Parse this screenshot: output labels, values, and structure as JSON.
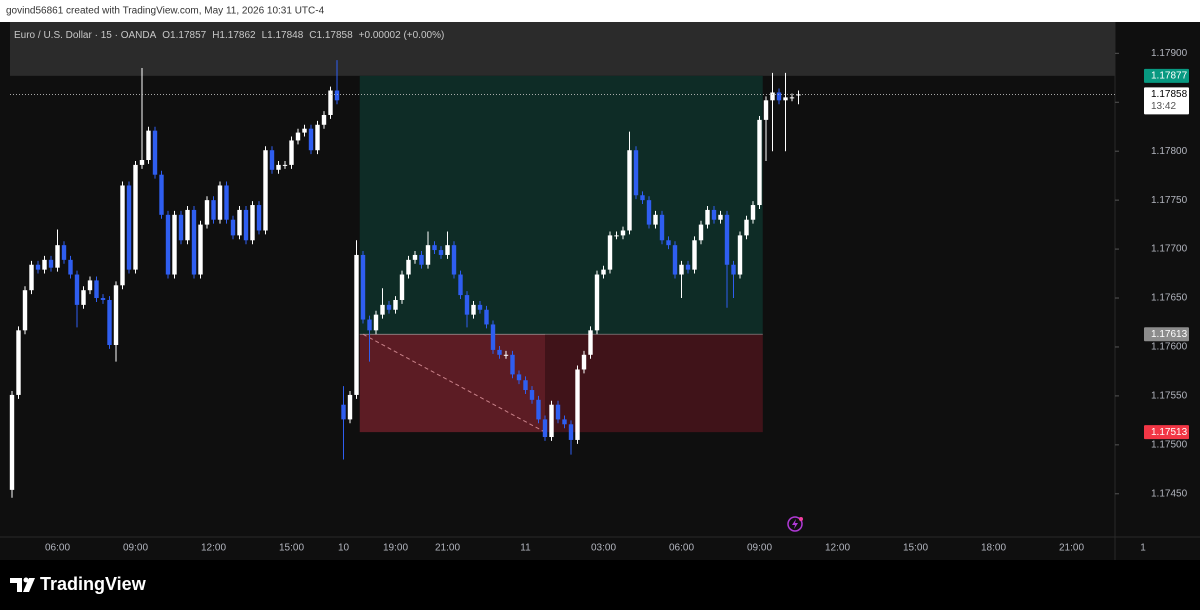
{
  "chart_data": {
    "type": "candlestick",
    "attribution": "govind56861 created with TradingView.com, May 11, 2026 10:31 UTC-4",
    "symbol": "Euro / U.S. Dollar · 15 · OANDA",
    "ohlc_text": [
      "O1.17857",
      "H1.17862",
      "L1.17848",
      "C1.17858",
      "+0.00002 (+0.00%)"
    ],
    "brand": "TradingView",
    "countdown": "13:42",
    "up_color": "#ffffff",
    "down_color": "#2f5ef0",
    "profit_color": "#0e2c26",
    "loss_color": "#5c1c24",
    "ylim": [
      1.17413,
      1.17932
    ],
    "yticks": [
      {
        "value": 1.1745,
        "label": "1.17450"
      },
      {
        "value": 1.175,
        "label": "1.17500"
      },
      {
        "value": 1.1755,
        "label": "1.17550"
      },
      {
        "value": 1.176,
        "label": "1.17600"
      },
      {
        "value": 1.1765,
        "label": "1.17650"
      },
      {
        "value": 1.177,
        "label": "1.17700"
      },
      {
        "value": 1.1775,
        "label": "1.17750"
      },
      {
        "value": 1.178,
        "label": "1.17800"
      },
      {
        "value": 1.1785,
        "label": "1.17850"
      },
      {
        "value": 1.179,
        "label": "1.17900"
      }
    ],
    "position": {
      "entry": 1.17613,
      "target": 1.17877,
      "stop": 1.17513,
      "start": 54,
      "end": 115
    },
    "categories": [
      null,
      null,
      null,
      null,
      null,
      null,
      null,
      "06:00",
      null,
      null,
      null,
      null,
      null,
      null,
      null,
      null,
      null,
      null,
      null,
      "09:00",
      null,
      null,
      null,
      null,
      null,
      null,
      null,
      null,
      null,
      null,
      null,
      "12:00",
      null,
      null,
      null,
      null,
      null,
      null,
      null,
      null,
      null,
      null,
      null,
      "15:00",
      null,
      null,
      null,
      null,
      null,
      null,
      null,
      "10",
      null,
      null,
      null,
      null,
      null,
      null,
      null,
      "19:00",
      null,
      null,
      null,
      null,
      null,
      null,
      null,
      "21:00",
      null,
      null,
      null,
      null,
      null,
      null,
      null,
      null,
      null,
      null,
      null,
      "11",
      null,
      null,
      null,
      null,
      null,
      null,
      null,
      null,
      null,
      null,
      null,
      "03:00",
      null,
      null,
      null,
      null,
      null,
      null,
      null,
      null,
      null,
      null,
      null,
      "06:00",
      null,
      null,
      null,
      null,
      null,
      null,
      null,
      null,
      null,
      null,
      null,
      "09:00",
      null,
      null,
      null,
      null,
      null,
      null,
      null,
      null,
      null,
      null,
      null,
      "12:00",
      null,
      null,
      null,
      null,
      null,
      null,
      null,
      null,
      null,
      null,
      null,
      "15:00",
      null,
      null,
      null,
      null,
      null,
      null,
      null,
      null,
      null,
      null,
      null,
      "18:00",
      null,
      null,
      null,
      null,
      null,
      null,
      null,
      null,
      null,
      null,
      null,
      "21:00",
      null,
      null,
      null,
      null,
      null,
      null,
      null,
      null,
      null,
      null,
      "1",
      null
    ],
    "open": [
      1.17454,
      1.17551,
      1.17617,
      1.17658,
      1.17684,
      1.17679,
      1.17689,
      1.17681,
      1.17704,
      1.17689,
      1.17674,
      1.17643,
      1.17658,
      1.17668,
      1.1765,
      1.17648,
      1.17602,
      1.17663,
      1.17765,
      1.17679,
      1.17786,
      1.17791,
      1.17821,
      1.17776,
      1.17735,
      1.17674,
      1.17735,
      1.17709,
      1.1774,
      1.17674,
      1.17725,
      1.1775,
      1.1773,
      1.17765,
      1.1773,
      1.17714,
      1.1774,
      1.17709,
      1.17745,
      1.17719,
      1.17801,
      1.17781,
      1.17786,
      1.17786,
      1.17811,
      1.17819,
      1.17823,
      1.17801,
      1.17827,
      1.17837,
      1.17862,
      1.17541,
      1.17526,
      1.17551,
      1.17694,
      1.17628,
      1.17617,
      1.17633,
      1.17643,
      1.17638,
      1.17648,
      1.17674,
      1.17689,
      1.17694,
      1.17684,
      1.17704,
      1.17699,
      1.17694,
      1.17704,
      1.17674,
      1.17653,
      1.17633,
      1.17643,
      1.17638,
      1.17623,
      1.17597,
      1.17592,
      1.17592,
      1.17572,
      1.17566,
      1.17556,
      1.17546,
      1.17526,
      1.17508,
      1.17541,
      1.17526,
      1.17521,
      1.17505,
      1.17577,
      1.17592,
      1.17617,
      1.17674,
      1.17679,
      1.17714,
      1.17714,
      1.17719,
      1.17801,
      1.17755,
      1.1775,
      1.17725,
      1.17735,
      1.17709,
      1.17704,
      1.17674,
      1.17684,
      1.17679,
      1.17709,
      1.17725,
      1.1774,
      1.1773,
      1.17735,
      1.17684,
      1.17674,
      1.17714,
      1.1773,
      1.17745,
      1.17832,
      1.17852,
      1.1786,
      1.17852,
      1.17855,
      1.17857,
      null,
      null,
      null,
      null,
      null,
      null,
      null,
      null,
      null,
      null,
      null,
      null,
      null,
      null,
      null,
      null,
      null,
      null,
      null,
      null,
      null,
      null,
      null,
      null,
      null,
      null,
      null,
      null,
      null,
      null,
      null,
      null,
      null,
      null,
      null,
      null,
      null,
      null,
      null,
      null,
      null,
      null,
      null,
      null,
      null,
      null,
      null,
      null,
      null,
      null,
      null,
      null,
      null,
      null
    ],
    "high": [
      1.17555,
      1.17621,
      1.17662,
      1.17688,
      1.17688,
      1.17693,
      1.17693,
      1.1772,
      1.17708,
      1.17693,
      1.17678,
      1.17662,
      1.17672,
      1.17672,
      1.17654,
      1.17652,
      1.17667,
      1.17769,
      1.17769,
      1.1779,
      1.17885,
      1.17825,
      1.17825,
      1.1778,
      1.17739,
      1.17739,
      1.17739,
      1.17744,
      1.17744,
      1.17729,
      1.17754,
      1.17754,
      1.17769,
      1.17769,
      1.17734,
      1.17744,
      1.17744,
      1.17749,
      1.17749,
      1.17805,
      1.17805,
      1.1779,
      1.1779,
      1.17815,
      1.17823,
      1.17827,
      1.17827,
      1.17831,
      1.17841,
      1.17866,
      1.17893,
      1.1756,
      1.17555,
      1.17709,
      1.17698,
      1.17632,
      1.17637,
      1.1766,
      1.17647,
      1.17652,
      1.17678,
      1.17693,
      1.17698,
      1.17698,
      1.17718,
      1.17708,
      1.17703,
      1.17718,
      1.17708,
      1.17678,
      1.17657,
      1.17647,
      1.17647,
      1.17642,
      1.17627,
      1.17601,
      1.17596,
      1.17596,
      1.17576,
      1.1757,
      1.1756,
      1.1755,
      1.1753,
      1.17545,
      1.17545,
      1.1753,
      1.17525,
      1.17581,
      1.17596,
      1.17621,
      1.17678,
      1.17683,
      1.17718,
      1.17718,
      1.17723,
      1.1782,
      1.17805,
      1.17759,
      1.17754,
      1.17739,
      1.17739,
      1.17713,
      1.17708,
      1.17688,
      1.17688,
      1.17713,
      1.17729,
      1.17744,
      1.17744,
      1.17739,
      1.17739,
      1.17688,
      1.17718,
      1.17734,
      1.17749,
      1.17836,
      1.17856,
      1.1788,
      1.17864,
      1.1788,
      1.17859,
      1.17862,
      null,
      null,
      null,
      null,
      null,
      null,
      null,
      null,
      null,
      null,
      null,
      null,
      null,
      null,
      null,
      null,
      null,
      null,
      null,
      null,
      null,
      null,
      null,
      null,
      null,
      null,
      null,
      null,
      null,
      null,
      null,
      null,
      null,
      null,
      null,
      null,
      null,
      null,
      null,
      null,
      null,
      null,
      null,
      null,
      null,
      null,
      null,
      null,
      null,
      null,
      null,
      null,
      null,
      null
    ],
    "low": [
      1.17446,
      1.17547,
      1.17613,
      1.17654,
      1.17675,
      1.17675,
      1.17677,
      1.17677,
      1.17685,
      1.1767,
      1.1762,
      1.17639,
      1.17654,
      1.17646,
      1.17644,
      1.17598,
      1.17585,
      1.17659,
      1.17675,
      1.17675,
      1.17782,
      1.17787,
      1.17772,
      1.17731,
      1.1767,
      1.1767,
      1.17705,
      1.17705,
      1.1767,
      1.1767,
      1.17721,
      1.17726,
      1.17726,
      1.17726,
      1.1771,
      1.1771,
      1.17705,
      1.17705,
      1.17715,
      1.17715,
      1.17777,
      1.17777,
      1.17782,
      1.17782,
      1.17807,
      1.17815,
      1.17797,
      1.17797,
      1.17823,
      1.17833,
      1.17848,
      1.17485,
      1.17522,
      1.17547,
      1.17624,
      1.17585,
      1.17613,
      1.17629,
      1.17634,
      1.17634,
      1.17644,
      1.1767,
      1.17685,
      1.1768,
      1.1768,
      1.17695,
      1.1769,
      1.1769,
      1.1767,
      1.17649,
      1.1762,
      1.17629,
      1.17634,
      1.17619,
      1.17593,
      1.17588,
      1.17588,
      1.17568,
      1.17562,
      1.17552,
      1.17542,
      1.17522,
      1.17504,
      1.17504,
      1.17522,
      1.17517,
      1.1749,
      1.17501,
      1.17573,
      1.17588,
      1.17613,
      1.1767,
      1.17675,
      1.1771,
      1.1771,
      1.17715,
      1.17751,
      1.17746,
      1.17721,
      1.17721,
      1.17705,
      1.177,
      1.1767,
      1.1765,
      1.17675,
      1.17675,
      1.17705,
      1.17721,
      1.17726,
      1.17726,
      1.1764,
      1.1765,
      1.1767,
      1.1771,
      1.17726,
      1.17741,
      1.1779,
      1.178,
      1.17848,
      1.178,
      1.17851,
      1.17848,
      null,
      null,
      null,
      null,
      null,
      null,
      null,
      null,
      null,
      null,
      null,
      null,
      null,
      null,
      null,
      null,
      null,
      null,
      null,
      null,
      null,
      null,
      null,
      null,
      null,
      null,
      null,
      null,
      null,
      null,
      null,
      null,
      null,
      null,
      null,
      null,
      null,
      null,
      null,
      null,
      null,
      null,
      null,
      null,
      null,
      null,
      null,
      null,
      null,
      null,
      null,
      null,
      null,
      null
    ],
    "close": [
      1.17551,
      1.17617,
      1.17658,
      1.17684,
      1.17679,
      1.17689,
      1.17681,
      1.17704,
      1.17689,
      1.17674,
      1.17643,
      1.17658,
      1.17668,
      1.1765,
      1.17648,
      1.17602,
      1.17663,
      1.17765,
      1.17679,
      1.17786,
      1.17791,
      1.17821,
      1.17776,
      1.17735,
      1.17674,
      1.17735,
      1.17709,
      1.1774,
      1.17674,
      1.17725,
      1.1775,
      1.1773,
      1.17765,
      1.1773,
      1.17714,
      1.1774,
      1.17709,
      1.17745,
      1.17719,
      1.17801,
      1.17781,
      1.17786,
      1.17786,
      1.17811,
      1.17819,
      1.17823,
      1.17801,
      1.17827,
      1.17837,
      1.17862,
      1.17852,
      1.17526,
      1.17551,
      1.17694,
      1.17628,
      1.17617,
      1.17633,
      1.17643,
      1.17638,
      1.17648,
      1.17674,
      1.17689,
      1.17694,
      1.17684,
      1.17704,
      1.17699,
      1.17694,
      1.17704,
      1.17674,
      1.17653,
      1.17633,
      1.17643,
      1.17638,
      1.17623,
      1.17597,
      1.17592,
      1.17592,
      1.17572,
      1.17566,
      1.17556,
      1.17546,
      1.17526,
      1.17508,
      1.17541,
      1.17526,
      1.17521,
      1.17505,
      1.17577,
      1.17592,
      1.17617,
      1.17674,
      1.17679,
      1.17714,
      1.17714,
      1.17719,
      1.17801,
      1.17755,
      1.1775,
      1.17725,
      1.17735,
      1.17709,
      1.17704,
      1.17674,
      1.17684,
      1.17679,
      1.17709,
      1.17725,
      1.1774,
      1.1773,
      1.17735,
      1.17684,
      1.17674,
      1.17714,
      1.1773,
      1.17745,
      1.17832,
      1.17852,
      1.1786,
      1.17852,
      1.17855,
      1.17855,
      1.17858,
      null,
      null,
      null,
      null,
      null,
      null,
      null,
      null,
      null,
      null,
      null,
      null,
      null,
      null,
      null,
      null,
      null,
      null,
      null,
      null,
      null,
      null,
      null,
      null,
      null,
      null,
      null,
      null,
      null,
      null,
      null,
      null,
      null,
      null,
      null,
      null,
      null,
      null,
      null,
      null,
      null,
      null,
      null,
      null,
      null,
      null,
      null,
      null,
      null,
      null,
      null,
      null,
      null,
      null
    ]
  }
}
